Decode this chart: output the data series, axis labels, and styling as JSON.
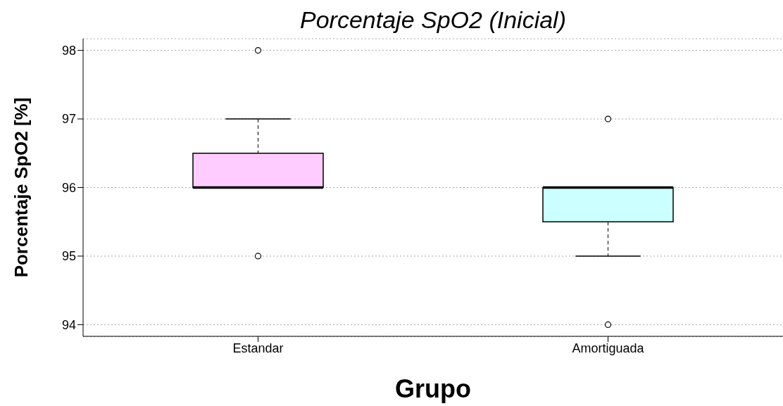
{
  "chart_data": {
    "type": "box",
    "title": "Porcentaje SpO2 (Inicial)",
    "xlabel": "Grupo",
    "ylabel": "Porcentaje SpO2 [%]",
    "categories": [
      "Estandar",
      "Amortiguada"
    ],
    "boxes": [
      {
        "low": 96,
        "q1": 96,
        "median": 96,
        "q3": 96.5,
        "high": 97,
        "outliers": [
          95,
          98
        ]
      },
      {
        "low": 95,
        "q1": 95.5,
        "median": 96,
        "q3": 96,
        "high": 96,
        "outliers": [
          94,
          97
        ]
      }
    ],
    "colors": [
      "#ffccff",
      "#ccffff"
    ],
    "ylim": [
      93.83,
      98.17
    ],
    "yticks": [
      94,
      95,
      96,
      97,
      98
    ],
    "grid": "y",
    "legend": false
  }
}
